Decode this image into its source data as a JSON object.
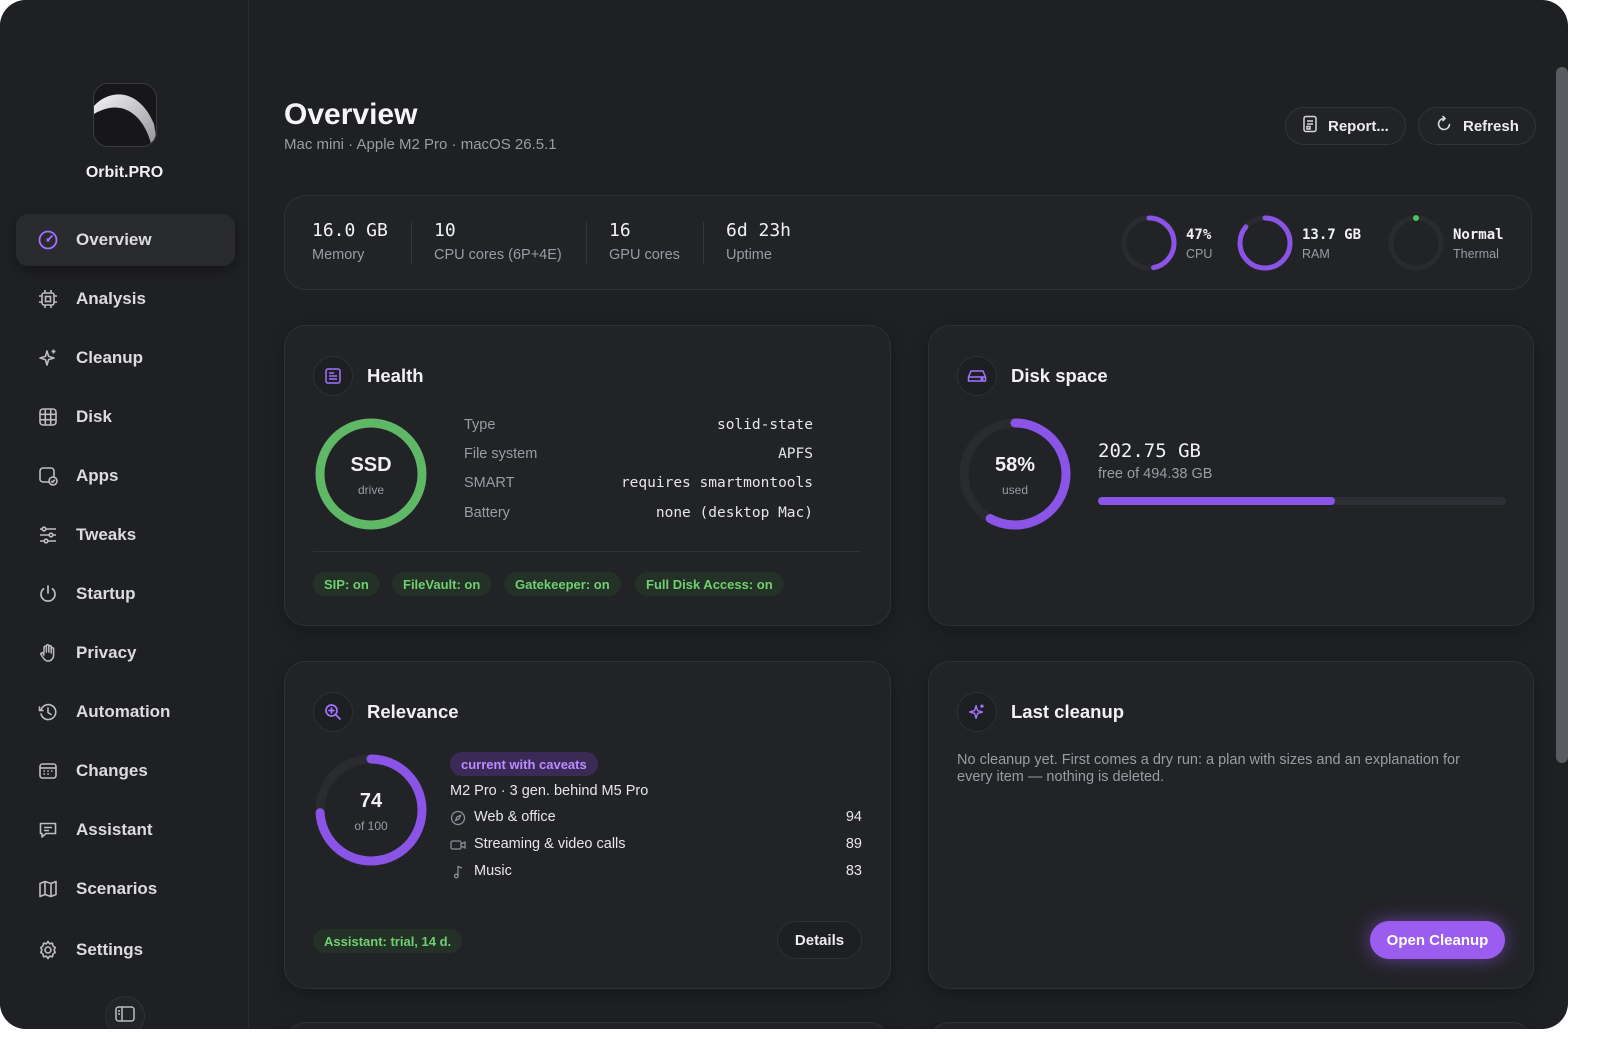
{
  "window": {
    "traffic_lights": [
      {
        "name": "close",
        "color": "#ff5f57"
      },
      {
        "name": "minimize",
        "color": "#febc2e"
      },
      {
        "name": "zoom",
        "color": "#28c840"
      }
    ]
  },
  "theme": {
    "accent": "#9b5cf0",
    "success": "#6fcf72"
  },
  "app": {
    "name": "Orbit.PRO"
  },
  "sidebar": {
    "items": [
      {
        "label": "Overview",
        "icon": "gauge-icon",
        "active": true
      },
      {
        "label": "Analysis",
        "icon": "chip-icon"
      },
      {
        "label": "Cleanup",
        "icon": "sparkles-icon"
      },
      {
        "label": "Disk",
        "icon": "grid-icon"
      },
      {
        "label": "Apps",
        "icon": "app-check-icon"
      },
      {
        "label": "Tweaks",
        "icon": "sliders-icon"
      },
      {
        "label": "Startup",
        "icon": "power-icon"
      },
      {
        "label": "Privacy",
        "icon": "hand-icon"
      },
      {
        "label": "Automation",
        "icon": "history-icon"
      },
      {
        "label": "Changes",
        "icon": "calendar-icon"
      },
      {
        "label": "Assistant",
        "icon": "chat-icon"
      },
      {
        "label": "Scenarios",
        "icon": "map-icon"
      },
      {
        "label": "Settings",
        "icon": "gear-icon"
      }
    ]
  },
  "header": {
    "title": "Overview",
    "subtitle": "Mac mini · Apple M2 Pro · macOS 26.5.1",
    "report_label": "Report...",
    "refresh_label": "Refresh"
  },
  "stats": [
    {
      "value": "16.0 GB",
      "label": "Memory"
    },
    {
      "value": "10",
      "label": "CPU cores (6P+4E)"
    },
    {
      "value": "16",
      "label": "GPU cores"
    },
    {
      "value": "6d 23h",
      "label": "Uptime"
    }
  ],
  "gauges": [
    {
      "value": "47%",
      "label": "CPU",
      "fraction": 0.47
    },
    {
      "value": "13.7 GB",
      "label": "RAM",
      "fraction": 0.86
    },
    {
      "value": "Normal",
      "label": "Thermal",
      "fraction": 0.0
    }
  ],
  "health": {
    "title": "Health",
    "ring_value": "SSD",
    "ring_label": "drive",
    "rows": [
      {
        "key": "Type",
        "value": "solid-state"
      },
      {
        "key": "File system",
        "value": "APFS"
      },
      {
        "key": "SMART",
        "value": "requires smartmontools"
      },
      {
        "key": "Battery",
        "value": "none (desktop Mac)"
      }
    ],
    "badges": [
      "SIP: on",
      "FileVault: on",
      "Gatekeeper: on",
      "Full Disk Access: on"
    ]
  },
  "disk": {
    "title": "Disk space",
    "ring_value": "58%",
    "ring_label": "used",
    "used_fraction": 0.58,
    "free": "202.75 GB",
    "free_of": "free of 494.38 GB"
  },
  "relevance": {
    "title": "Relevance",
    "score": "74",
    "score_of": "of 100",
    "score_fraction": 0.74,
    "badge": "current with caveats",
    "summary": "M2 Pro · 3 gen. behind M5 Pro",
    "rows": [
      {
        "label": "Web & office",
        "value": "94",
        "icon": "compass-icon"
      },
      {
        "label": "Streaming & video calls",
        "value": "89",
        "icon": "video-icon"
      },
      {
        "label": "Music",
        "value": "83",
        "icon": "music-note-icon"
      }
    ],
    "assistant_badge": "Assistant: trial, 14 d.",
    "details_label": "Details"
  },
  "last_cleanup": {
    "title": "Last cleanup",
    "text": "No cleanup yet. First comes a dry run: a plan with sizes and an explanation for every item — nothing is deleted.",
    "button": "Open Cleanup"
  }
}
